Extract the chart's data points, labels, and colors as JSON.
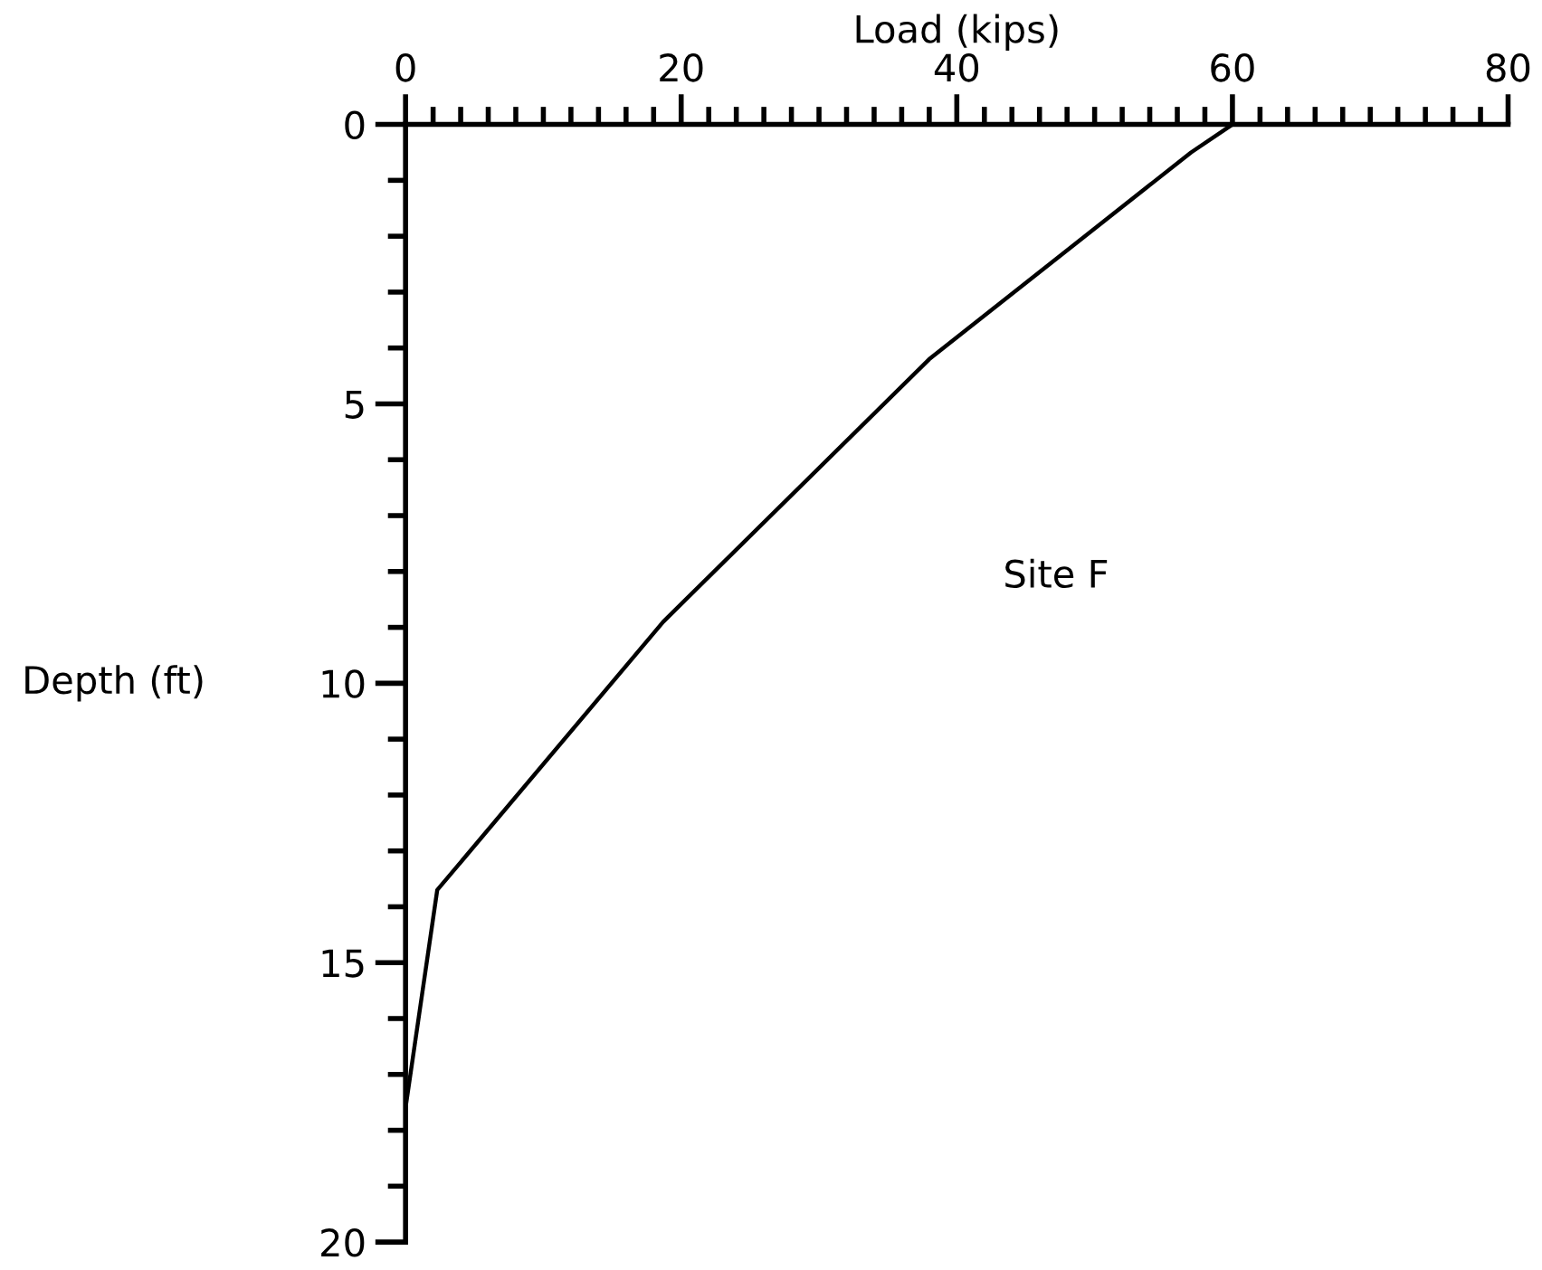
{
  "chart_data": {
    "type": "line",
    "xlabel": "Load (kips)",
    "ylabel": "Depth (ft)",
    "annotations": [
      "Site F"
    ],
    "x": [
      60,
      57,
      38,
      18.7,
      2.3,
      0
    ],
    "series": [
      {
        "color": "#000000",
        "values": [
          0,
          0.5,
          4.2,
          8.9,
          13.7,
          17.6
        ]
      }
    ],
    "xlim": [
      0,
      80
    ],
    "ylim": [
      20,
      0
    ],
    "xticks": [
      0,
      {
        "value": 2,
        "label": null
      },
      {
        "value": 4,
        "label": null
      },
      {
        "value": 6,
        "label": null
      },
      {
        "value": 8,
        "label": null
      },
      {
        "value": 10,
        "label": null
      },
      {
        "value": 12,
        "label": null
      },
      {
        "value": 14,
        "label": null
      },
      {
        "value": 16,
        "label": null
      },
      {
        "value": 18,
        "label": null
      },
      20,
      {
        "value": 22,
        "label": null
      },
      {
        "value": 24,
        "label": null
      },
      {
        "value": 26,
        "label": null
      },
      {
        "value": 28,
        "label": null
      },
      {
        "value": 30,
        "label": null
      },
      {
        "value": 32,
        "label": null
      },
      {
        "value": 34,
        "label": null
      },
      {
        "value": 36,
        "label": null
      },
      {
        "value": 38,
        "label": null
      },
      40,
      {
        "value": 42,
        "label": null
      },
      {
        "value": 44,
        "label": null
      },
      {
        "value": 46,
        "label": null
      },
      {
        "value": 48,
        "label": null
      },
      {
        "value": 50,
        "label": null
      },
      {
        "value": 52,
        "label": null
      },
      {
        "value": 54,
        "label": null
      },
      {
        "value": 56,
        "label": null
      },
      {
        "value": 58,
        "label": null
      },
      60,
      {
        "value": 62,
        "label": null
      },
      {
        "value": 64,
        "label": null
      },
      {
        "value": 66,
        "label": null
      },
      {
        "value": 68,
        "label": null
      },
      {
        "value": 70,
        "label": null
      },
      {
        "value": 72,
        "label": null
      },
      {
        "value": 74,
        "label": null
      },
      {
        "value": 76,
        "label": null
      },
      {
        "value": 78,
        "label": null
      },
      80
    ],
    "yticks": [
      0,
      {
        "value": 1,
        "label": null
      },
      {
        "value": 2,
        "label": null
      },
      {
        "value": 3,
        "label": null
      },
      {
        "value": 4,
        "label": null
      },
      5,
      {
        "value": 6,
        "label": null
      },
      {
        "value": 7,
        "label": null
      },
      {
        "value": 8,
        "label": null
      },
      {
        "value": 9,
        "label": null
      },
      10,
      {
        "value": 11,
        "label": null
      },
      {
        "value": 12,
        "label": null
      },
      {
        "value": 13,
        "label": null
      },
      {
        "value": 14,
        "label": null
      },
      15,
      {
        "value": 16,
        "label": null
      },
      {
        "value": 17,
        "label": null
      },
      {
        "value": 18,
        "label": null
      },
      {
        "value": 19,
        "label": null
      },
      20
    ],
    "grid": false,
    "marker": "none",
    "line_style": "solid"
  }
}
